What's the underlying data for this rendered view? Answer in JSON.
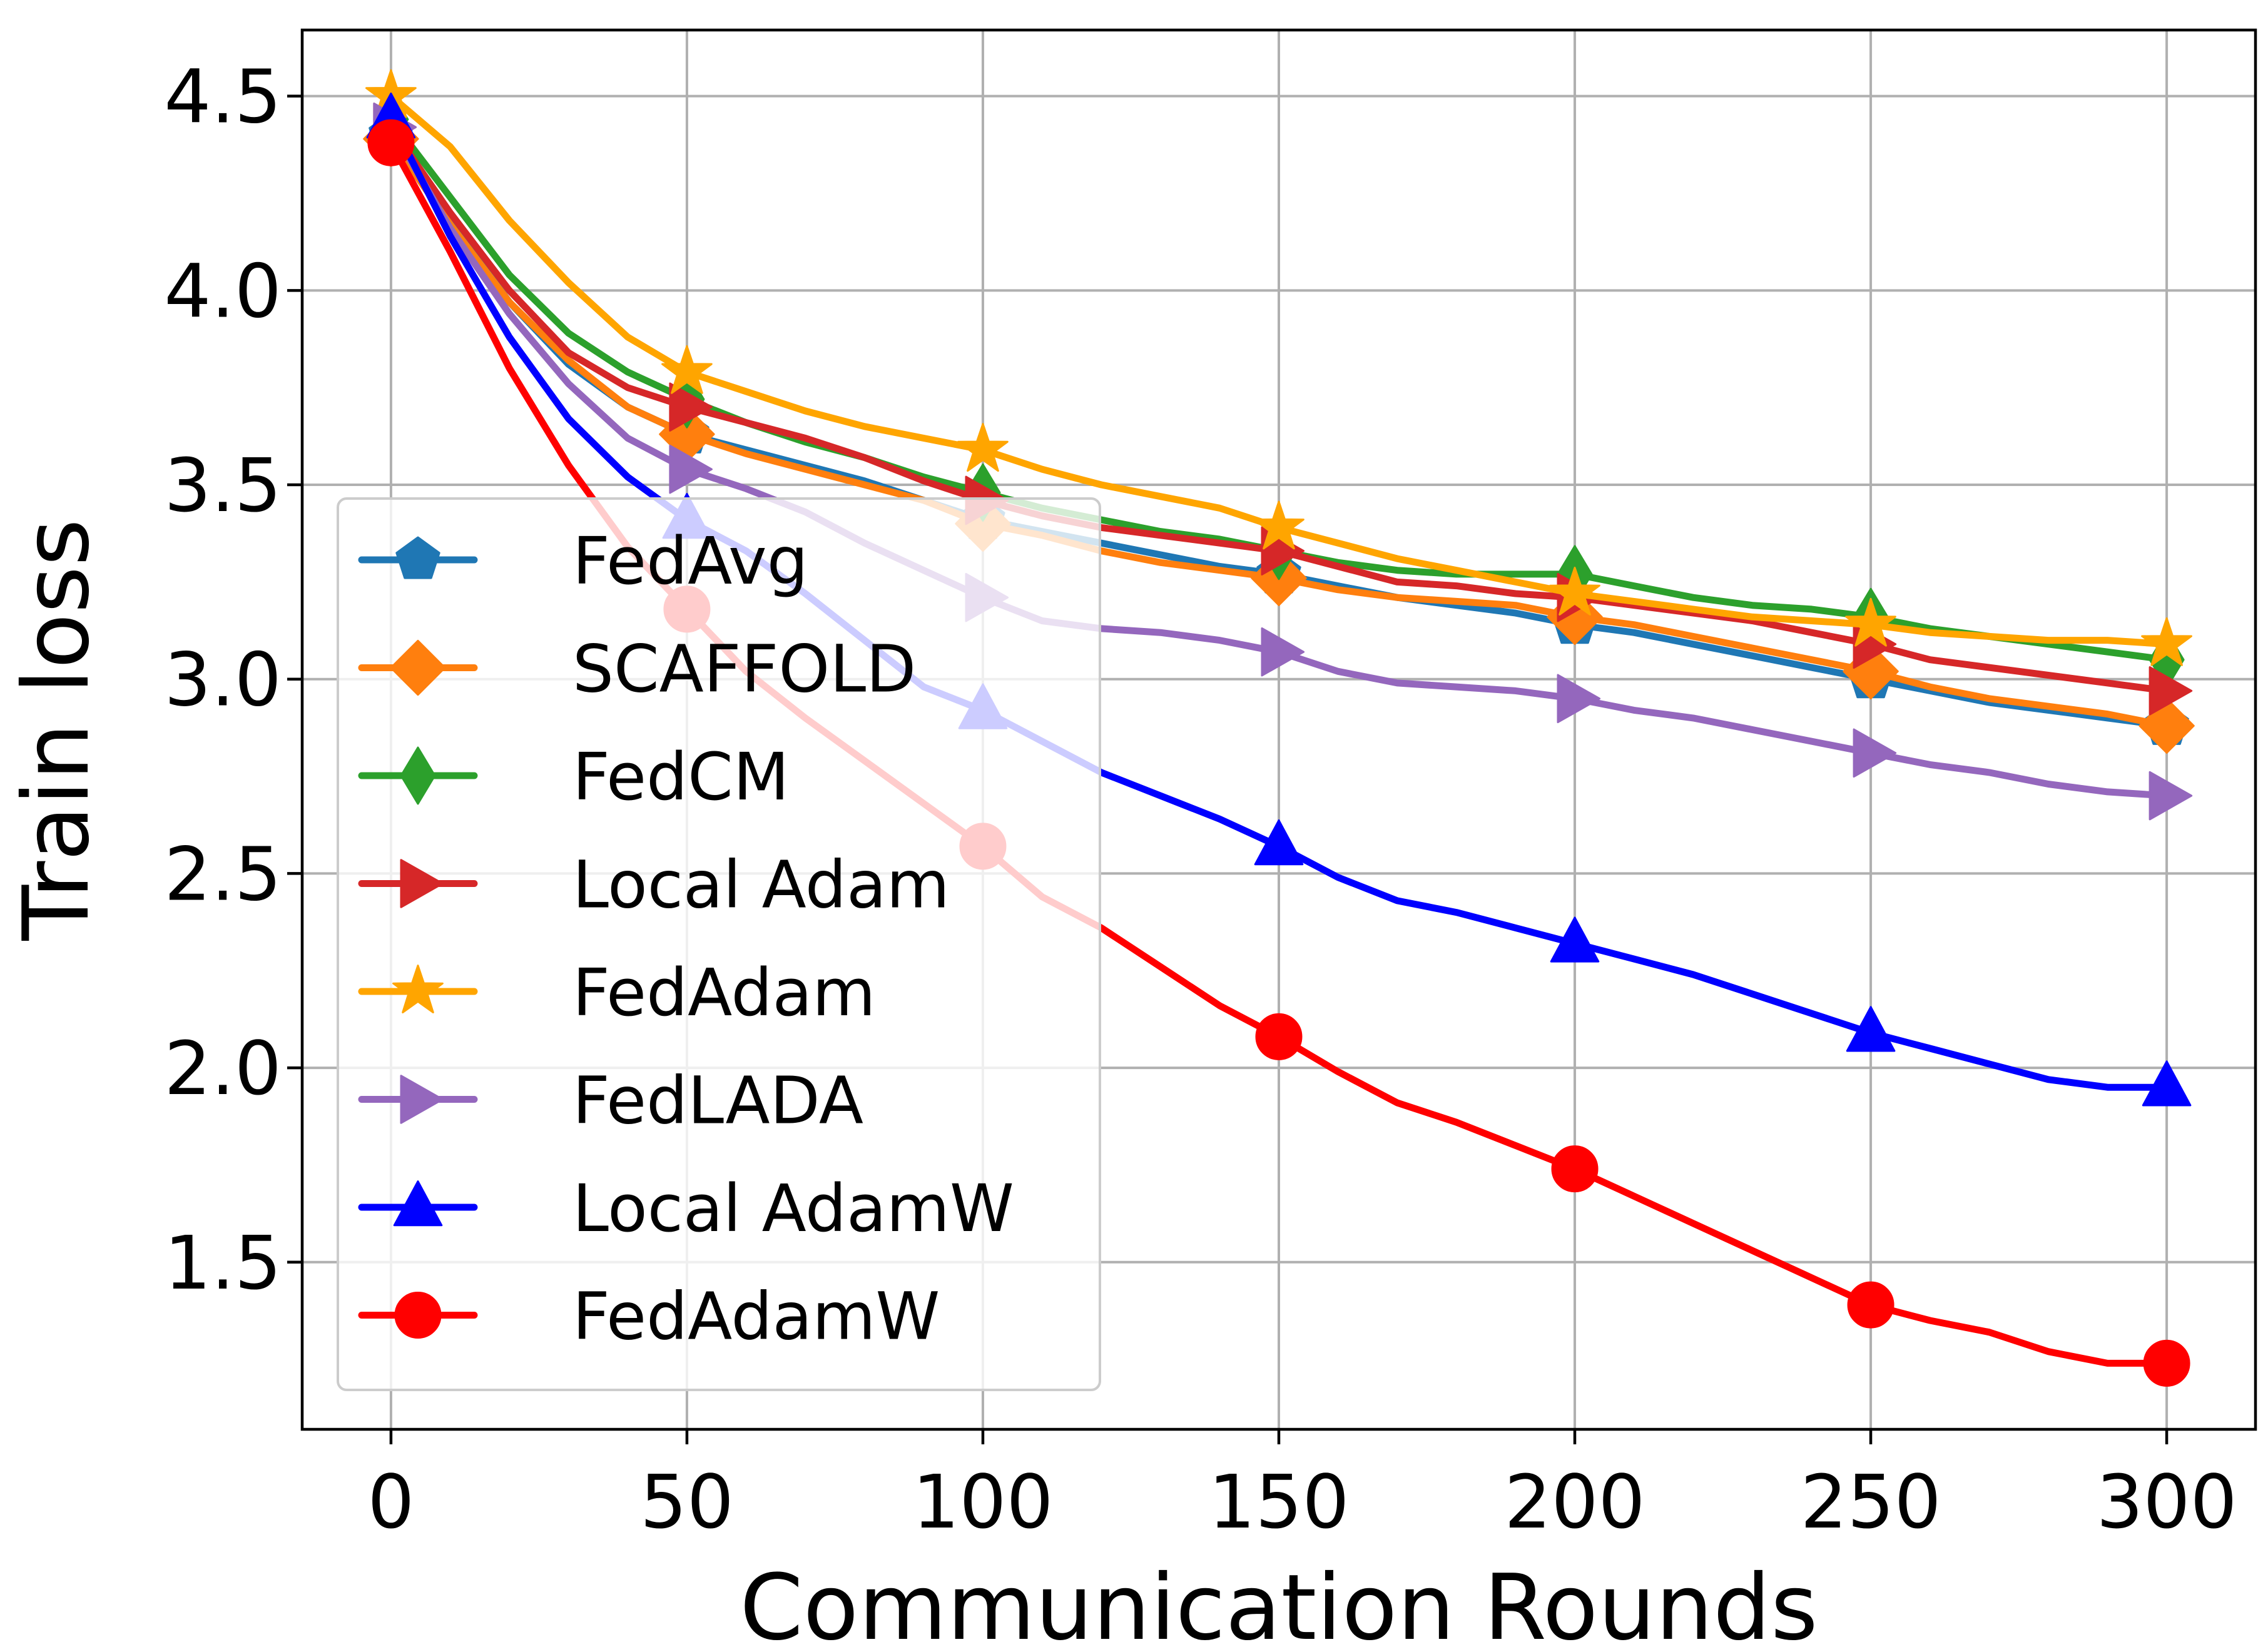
{
  "chart_data": {
    "type": "line",
    "title": "",
    "xlabel": "Communication Rounds",
    "ylabel": "Train loss",
    "xlim": [
      -15,
      315
    ],
    "ylim": [
      1.07,
      4.67
    ],
    "xticks": [
      0,
      50,
      100,
      150,
      200,
      250,
      300
    ],
    "yticks": [
      1.5,
      2.0,
      2.5,
      3.0,
      3.5,
      4.0,
      4.5
    ],
    "xtick_labels": [
      "0",
      "50",
      "100",
      "150",
      "200",
      "250",
      "300"
    ],
    "ytick_labels": [
      "1.5",
      "2.0",
      "2.5",
      "3.0",
      "3.5",
      "4.0",
      "4.5"
    ],
    "grid": true,
    "legend_location": "lower-left",
    "x": [
      0,
      10,
      20,
      30,
      40,
      50,
      60,
      70,
      80,
      90,
      100,
      110,
      120,
      130,
      140,
      150,
      160,
      170,
      180,
      190,
      200,
      210,
      220,
      230,
      240,
      250,
      260,
      270,
      280,
      290,
      300
    ],
    "marker_x": [
      0,
      50,
      100,
      150,
      200,
      250,
      300
    ],
    "series": [
      {
        "name": "FedAvg",
        "color": "#1f77b4",
        "marker": "pentagon",
        "values": [
          4.4,
          4.18,
          3.97,
          3.81,
          3.7,
          3.63,
          3.59,
          3.55,
          3.51,
          3.46,
          3.41,
          3.38,
          3.35,
          3.32,
          3.29,
          3.27,
          3.24,
          3.21,
          3.19,
          3.17,
          3.14,
          3.12,
          3.09,
          3.06,
          3.03,
          3.0,
          2.97,
          2.94,
          2.92,
          2.9,
          2.88
        ]
      },
      {
        "name": "SCAFFOLD",
        "color": "#ff7f0e",
        "marker": "diamond",
        "values": [
          4.39,
          4.17,
          3.97,
          3.82,
          3.7,
          3.63,
          3.58,
          3.54,
          3.5,
          3.46,
          3.4,
          3.37,
          3.33,
          3.3,
          3.28,
          3.26,
          3.23,
          3.21,
          3.2,
          3.19,
          3.16,
          3.14,
          3.11,
          3.08,
          3.05,
          3.02,
          2.98,
          2.95,
          2.93,
          2.91,
          2.88
        ]
      },
      {
        "name": "FedCM",
        "color": "#2ca02c",
        "marker": "thin-diamond",
        "values": [
          4.44,
          4.24,
          4.04,
          3.89,
          3.79,
          3.72,
          3.66,
          3.61,
          3.57,
          3.52,
          3.48,
          3.44,
          3.41,
          3.38,
          3.36,
          3.33,
          3.3,
          3.28,
          3.27,
          3.27,
          3.27,
          3.24,
          3.21,
          3.19,
          3.18,
          3.16,
          3.13,
          3.11,
          3.09,
          3.07,
          3.05
        ]
      },
      {
        "name": "Local Adam",
        "color": "#d62728",
        "marker": "triangle-right",
        "values": [
          4.42,
          4.2,
          4.0,
          3.84,
          3.75,
          3.7,
          3.66,
          3.62,
          3.57,
          3.51,
          3.46,
          3.42,
          3.39,
          3.37,
          3.35,
          3.33,
          3.29,
          3.25,
          3.24,
          3.22,
          3.21,
          3.19,
          3.17,
          3.15,
          3.12,
          3.09,
          3.05,
          3.03,
          3.01,
          2.99,
          2.97
        ]
      },
      {
        "name": "FedAdam",
        "color": "#ffa500",
        "marker": "star",
        "values": [
          4.5,
          4.37,
          4.18,
          4.02,
          3.88,
          3.79,
          3.74,
          3.69,
          3.65,
          3.62,
          3.59,
          3.54,
          3.5,
          3.47,
          3.44,
          3.39,
          3.35,
          3.31,
          3.28,
          3.25,
          3.22,
          3.2,
          3.18,
          3.16,
          3.15,
          3.14,
          3.12,
          3.11,
          3.1,
          3.1,
          3.09
        ]
      },
      {
        "name": "FedLADA",
        "color": "#9467bd",
        "marker": "triangle-right",
        "values": [
          4.42,
          4.16,
          3.94,
          3.76,
          3.62,
          3.54,
          3.49,
          3.43,
          3.35,
          3.28,
          3.21,
          3.15,
          3.13,
          3.12,
          3.1,
          3.07,
          3.02,
          2.99,
          2.98,
          2.97,
          2.95,
          2.92,
          2.9,
          2.87,
          2.84,
          2.81,
          2.78,
          2.76,
          2.73,
          2.71,
          2.7
        ]
      },
      {
        "name": "Local AdamW",
        "color": "#0000ff",
        "marker": "triangle-up",
        "values": [
          4.44,
          4.14,
          3.88,
          3.67,
          3.52,
          3.41,
          3.33,
          3.22,
          3.1,
          2.98,
          2.92,
          2.84,
          2.76,
          2.7,
          2.64,
          2.57,
          2.49,
          2.43,
          2.4,
          2.36,
          2.32,
          2.28,
          2.24,
          2.19,
          2.14,
          2.09,
          2.05,
          2.01,
          1.97,
          1.95,
          1.95
        ]
      },
      {
        "name": "FedAdamW",
        "color": "#ff0000",
        "marker": "circle",
        "values": [
          4.38,
          4.1,
          3.8,
          3.55,
          3.34,
          3.18,
          3.02,
          2.9,
          2.79,
          2.68,
          2.57,
          2.44,
          2.36,
          2.26,
          2.16,
          2.08,
          1.99,
          1.91,
          1.86,
          1.8,
          1.74,
          1.67,
          1.6,
          1.53,
          1.46,
          1.39,
          1.35,
          1.32,
          1.27,
          1.24,
          1.24
        ]
      }
    ]
  }
}
